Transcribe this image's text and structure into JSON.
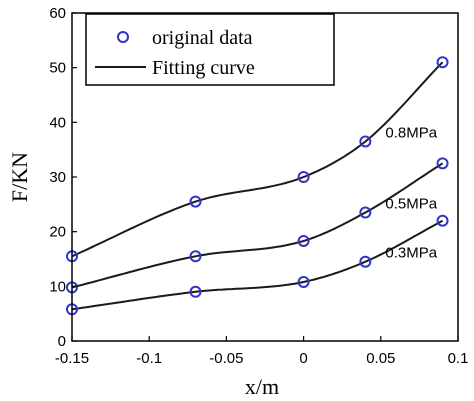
{
  "chart_data": {
    "type": "scatter",
    "title": "",
    "xlabel": "x/m",
    "ylabel": "F/KN",
    "xlim": [
      -0.15,
      0.1
    ],
    "ylim": [
      0,
      60
    ],
    "xticks": [
      -0.15,
      -0.1,
      -0.05,
      0,
      0.05,
      0.1
    ],
    "xtick_labels": [
      "-0.15",
      "-0.1",
      "-0.05",
      "0",
      "0.05",
      "0.1"
    ],
    "yticks": [
      0,
      10,
      20,
      30,
      40,
      50,
      60
    ],
    "ytick_labels": [
      "0",
      "10",
      "20",
      "30",
      "40",
      "50",
      "60"
    ],
    "grid": false,
    "legend": {
      "placement": "top-left",
      "entries": [
        "original data",
        "Fitting curve"
      ]
    },
    "marker_color": "#2f35c8",
    "curve_color": "#1a1a1a",
    "series": [
      {
        "label": "0.8MPa",
        "x": [
          -0.15,
          -0.07,
          0,
          0.04,
          0.09
        ],
        "y": [
          15.5,
          25.5,
          30,
          36.5,
          51
        ]
      },
      {
        "label": "0.5MPa",
        "x": [
          -0.15,
          -0.07,
          0,
          0.04,
          0.09
        ],
        "y": [
          9.8,
          15.5,
          18.3,
          23.5,
          32.5
        ]
      },
      {
        "label": "0.3MPa",
        "x": [
          -0.15,
          -0.07,
          0,
          0.04,
          0.09
        ],
        "y": [
          5.8,
          9,
          10.8,
          14.5,
          22
        ]
      }
    ]
  }
}
